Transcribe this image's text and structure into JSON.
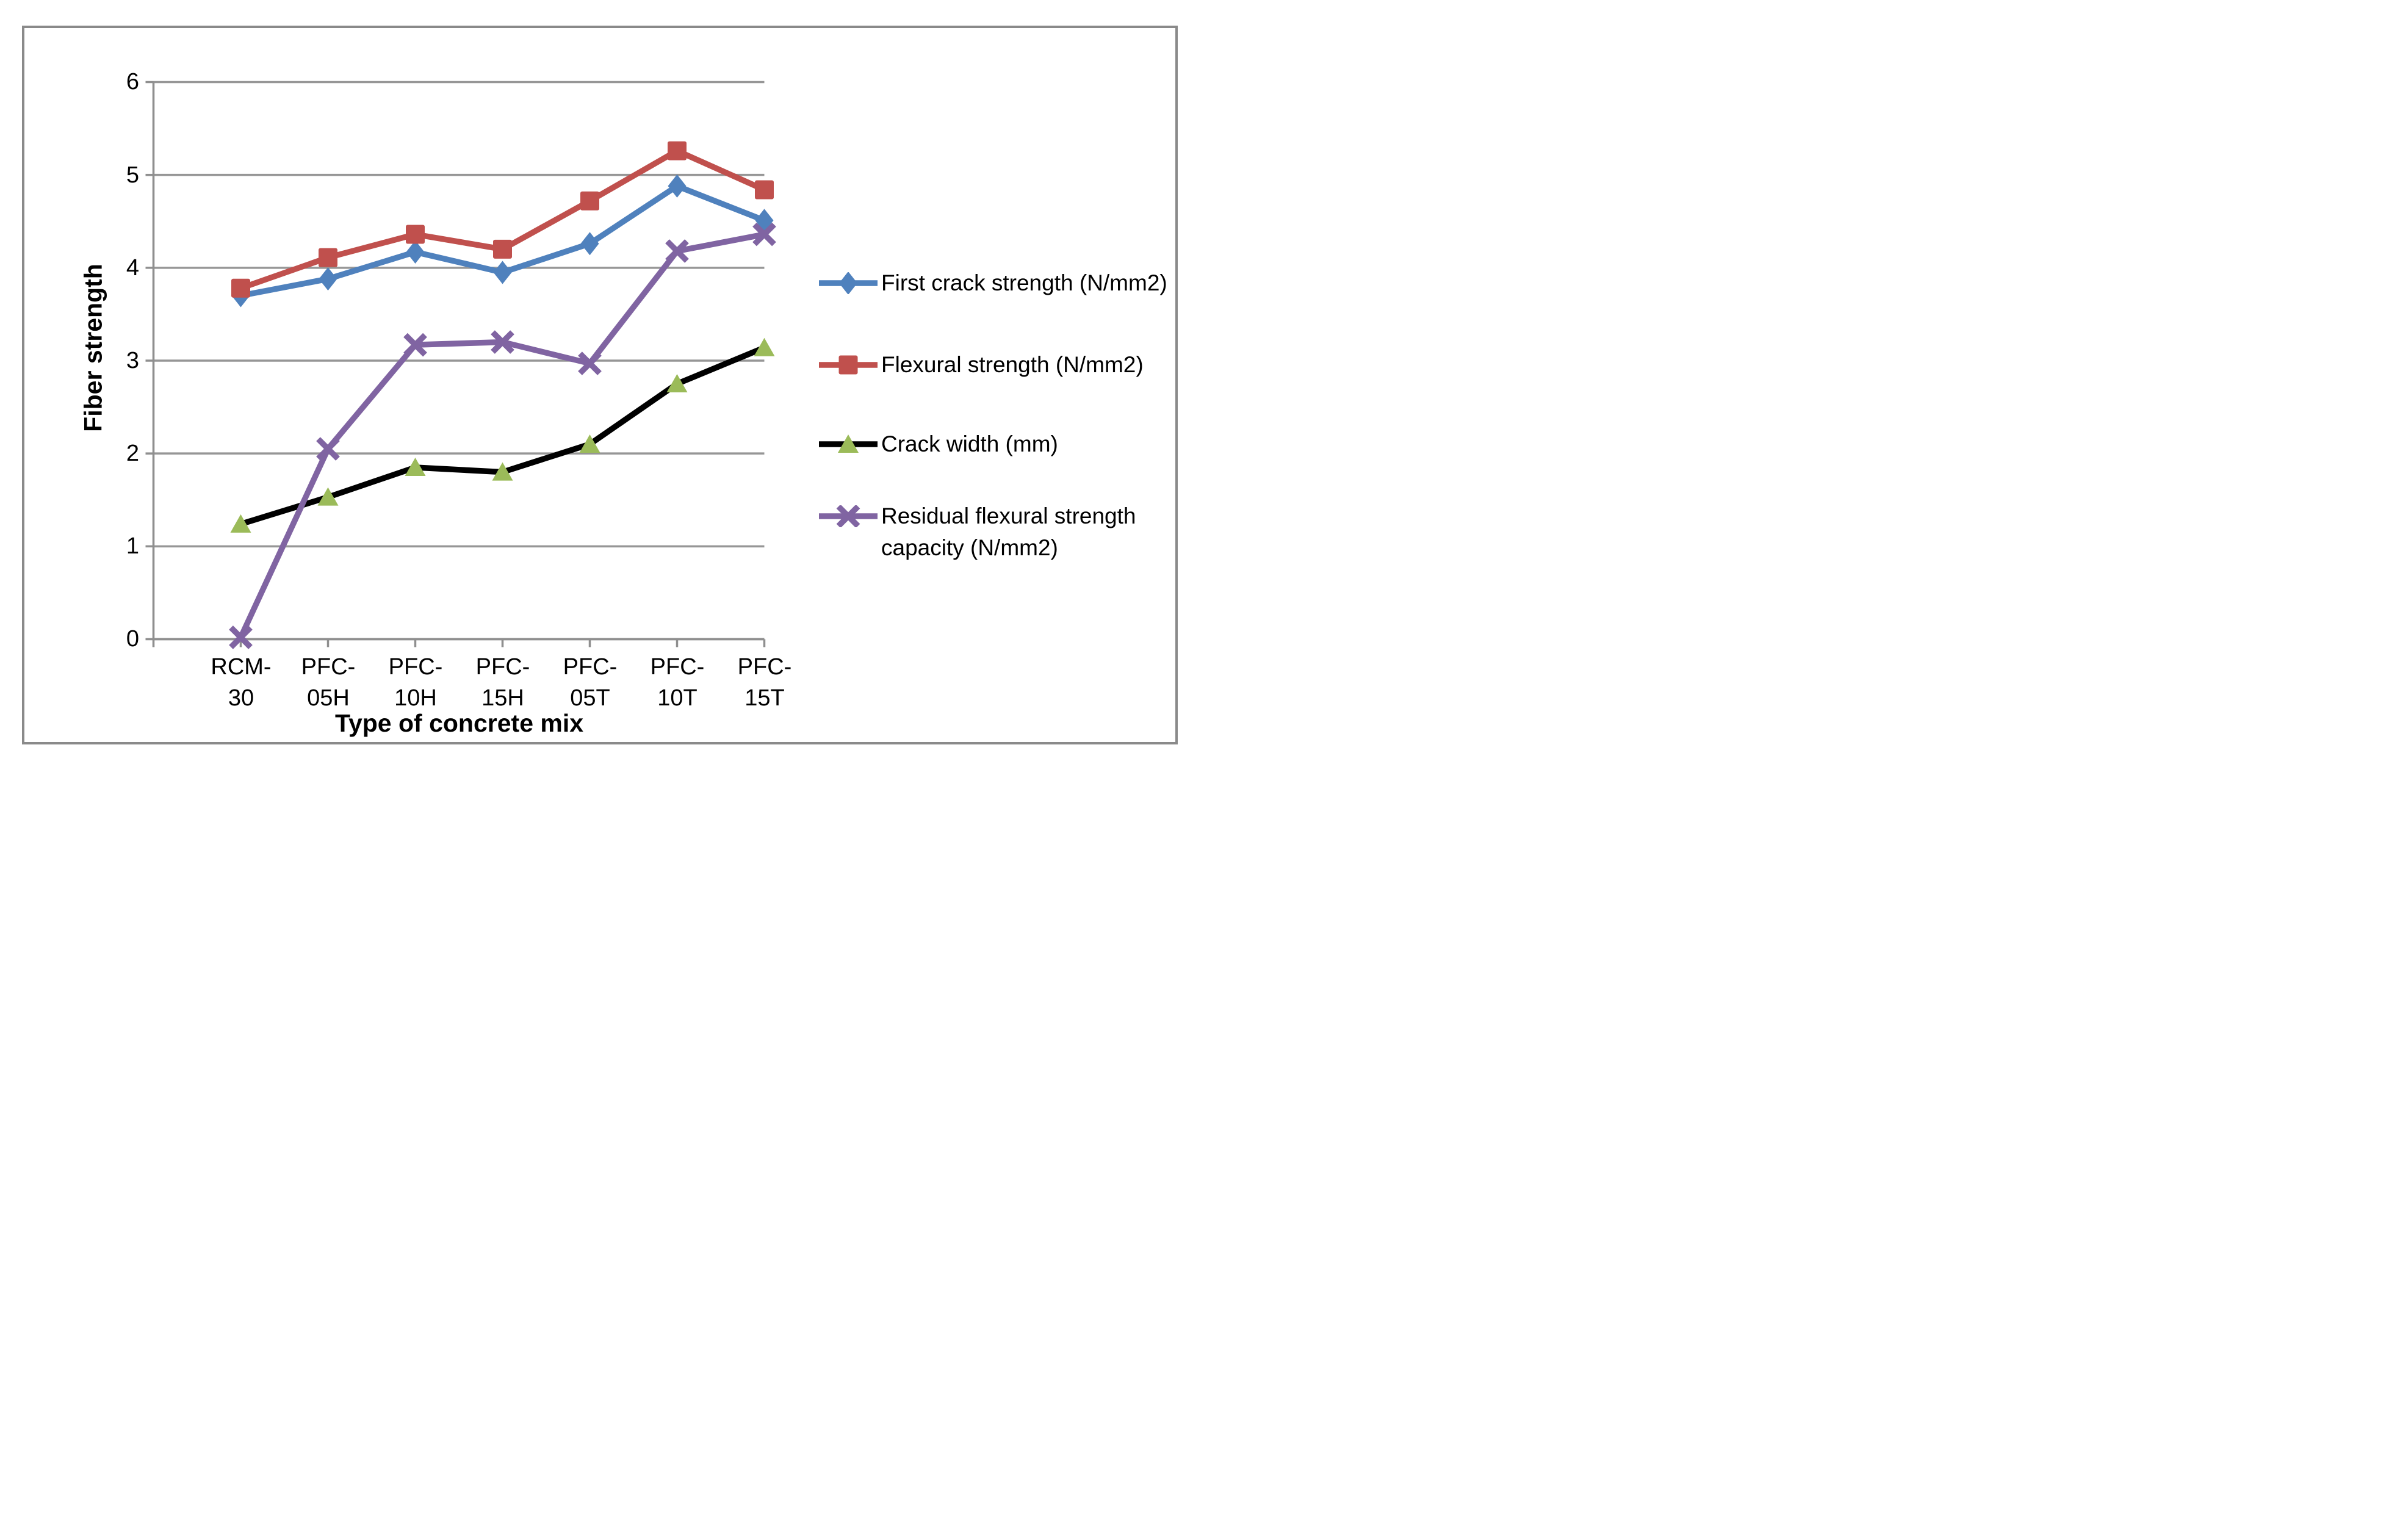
{
  "chart_data": {
    "type": "line",
    "title": "",
    "categories": [
      "RCM-30",
      "PFC-05H",
      "PFC-10H",
      "PFC-15H",
      "PFC-05T",
      "PFC-10T",
      "PFC-15T"
    ],
    "series": [
      {
        "name": "First crack strength (N/mm2)",
        "color": "#4F81BD",
        "marker": "diamond",
        "marker_color": "#4F81BD",
        "values": [
          3.7,
          3.88,
          4.17,
          3.95,
          4.26,
          4.88,
          4.51
        ]
      },
      {
        "name": "Flexural strength (N/mm2)",
        "color": "#C0504D",
        "marker": "square",
        "marker_color": "#C0504D",
        "values": [
          3.78,
          4.11,
          4.36,
          4.2,
          4.72,
          5.26,
          4.84
        ]
      },
      {
        "name": "Crack width (mm)",
        "color": "#000000",
        "marker": "triangle",
        "marker_color": "#9BBB59",
        "values": [
          1.24,
          1.53,
          1.85,
          1.8,
          2.1,
          2.75,
          3.14
        ]
      },
      {
        "name": "Residual flexural strength capacity (N/mm2)",
        "color": "#8064A2",
        "marker": "x",
        "marker_color": "#8064A2",
        "values": [
          0.02,
          2.05,
          3.17,
          3.2,
          2.97,
          4.18,
          4.36
        ]
      }
    ],
    "xlabel": "Type of concrete mix",
    "ylabel": "Fiber strength",
    "ylim": [
      0,
      6
    ],
    "yticks": [
      0,
      1,
      2,
      3,
      4,
      5,
      6
    ],
    "grid": "horizontal",
    "legend_position": "right"
  },
  "y_axis": {
    "title": "Fiber strength",
    "ticks": [
      "6",
      "5",
      "4",
      "3",
      "2",
      "1",
      "0"
    ]
  },
  "x_axis": {
    "title": "Type of concrete mix",
    "tick_lines": [
      [
        "RCM-",
        "30"
      ],
      [
        "PFC-",
        "05H"
      ],
      [
        "PFC-",
        "10H"
      ],
      [
        "PFC-",
        "15H"
      ],
      [
        "PFC-",
        "05T"
      ],
      [
        "PFC-",
        "10T"
      ],
      [
        "PFC-",
        "15T"
      ]
    ]
  },
  "legend": {
    "items": [
      {
        "lines": [
          "First crack strength (N/mm2)"
        ]
      },
      {
        "lines": [
          "Flexural strength (N/mm2)"
        ]
      },
      {
        "lines": [
          "Crack width (mm)"
        ]
      },
      {
        "lines": [
          "Residual flexural strength",
          "capacity (N/mm2)"
        ]
      }
    ]
  },
  "colors": {
    "gridline": "#969696",
    "axis": "#8f8f8f",
    "frame_border": "#8a8a8a",
    "text": "#000000",
    "background": "#FFFFFF"
  }
}
